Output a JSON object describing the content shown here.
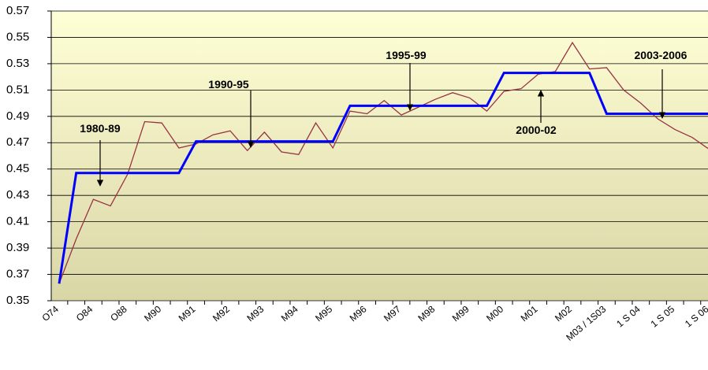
{
  "chart_data": {
    "type": "line",
    "categories": [
      "O74",
      null,
      "O84",
      null,
      "O88",
      null,
      "M90",
      null,
      "M91",
      null,
      "M92",
      null,
      "M93",
      null,
      "M94",
      null,
      "M95",
      null,
      "M96",
      null,
      "M97",
      null,
      "M98",
      null,
      "M99",
      null,
      "M00",
      null,
      "M01",
      null,
      "M02",
      null,
      "M03 / 1S03",
      null,
      "1 S 04",
      null,
      "1 S 05",
      null,
      "1 S 06"
    ],
    "series": [
      {
        "color": "#993344",
        "values": [
          0.363,
          0.397,
          0.427,
          0.422,
          0.446,
          0.486,
          0.485,
          0.466,
          0.469,
          0.476,
          0.479,
          0.464,
          0.478,
          0.463,
          0.461,
          0.485,
          0.466,
          0.494,
          0.492,
          0.502,
          0.491,
          0.497,
          0.503,
          0.508,
          0.504,
          0.494,
          0.509,
          0.511,
          0.522,
          0.524,
          0.546,
          0.526,
          0.527,
          0.51,
          0.5,
          0.488,
          0.48,
          0.474,
          0.465
        ]
      },
      {
        "color": "#0000ff",
        "values": [
          0.363,
          0.447,
          0.447,
          0.447,
          0.447,
          0.447,
          0.447,
          0.447,
          0.471,
          0.471,
          0.471,
          0.471,
          0.471,
          0.471,
          0.471,
          0.471,
          0.471,
          0.498,
          0.498,
          0.498,
          0.498,
          0.498,
          0.498,
          0.498,
          0.498,
          0.498,
          0.523,
          0.523,
          0.523,
          0.523,
          0.523,
          0.523,
          0.492,
          0.492,
          0.492,
          0.492,
          0.492,
          0.492,
          0.492
        ]
      }
    ],
    "ylim": [
      0.35,
      0.57
    ],
    "yticks": [
      0.35,
      0.37,
      0.39,
      0.41,
      0.43,
      0.45,
      0.47,
      0.49,
      0.51,
      0.53,
      0.55,
      0.57
    ],
    "grid": true,
    "annotations": [
      "1980-89",
      "1990-95",
      "1995-99",
      "2000-02",
      "2003-2006"
    ]
  }
}
